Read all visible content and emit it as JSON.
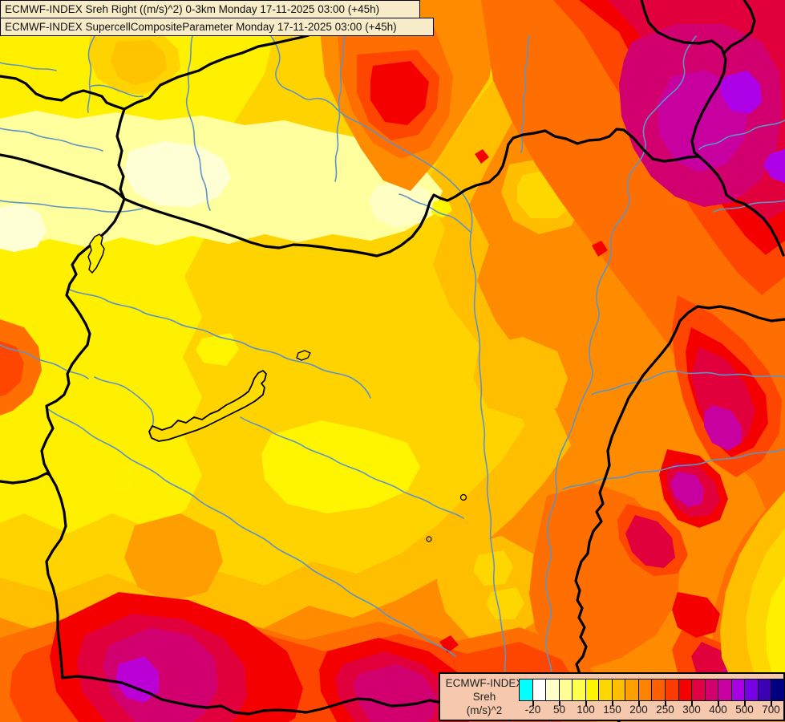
{
  "header": {
    "line1": "ECMWF-INDEX Sreh Right ((m/s)^2) 0-3km Monday 17-11-2025 03:00 (+45h)",
    "line2": "ECMWF-INDEX SupercellCompositeParameter Monday 17-11-2025 03:00 (+45h)"
  },
  "legend": {
    "title": "ECMWF-INDEX",
    "parameter": "Sreh",
    "units": "(m/s)^2",
    "tick_labels": [
      "-20",
      "50",
      "100",
      "150",
      "200",
      "250",
      "300",
      "400",
      "500",
      "700"
    ],
    "colors": [
      "#00FFFF",
      "#FFFFFF",
      "#FFFFC8",
      "#FFFF96",
      "#FFFF50",
      "#FFF500",
      "#FFD700",
      "#FFBE00",
      "#FFA000",
      "#FF8200",
      "#FF5F00",
      "#FF3C00",
      "#F80000",
      "#E10041",
      "#D2006E",
      "#C800A0",
      "#AA00E6",
      "#7800E6",
      "#3C00B4",
      "#000082"
    ]
  },
  "map": {
    "region": "weather-map-central-europe",
    "feature_names": [
      "country-borders",
      "rivers",
      "lake-balaton",
      "lake-ferto",
      "lake-velence"
    ]
  },
  "chart_data": {
    "type": "heatmap",
    "title": "ECMWF-INDEX Sreh Right ((m/s)^2) 0-3km",
    "overlay_title": "ECMWF-INDEX SupercellCompositeParameter",
    "valid_time": "Monday 17-11-2025 03:00 (+45h)",
    "units": "(m/s)^2",
    "legend_values": [
      -20,
      50,
      100,
      150,
      200,
      250,
      300,
      400,
      500,
      700
    ],
    "palette": [
      "#00FFFF",
      "#FFFFFF",
      "#FFFFC8",
      "#FFFF96",
      "#FFFF50",
      "#FFF500",
      "#FFD700",
      "#FFBE00",
      "#FFA000",
      "#FF8200",
      "#FF5F00",
      "#FF3C00",
      "#F80000",
      "#E10041",
      "#D2006E",
      "#C800A0",
      "#AA00E6",
      "#7800E6",
      "#3C00B4",
      "#000082"
    ],
    "legend_position": "bottom-right",
    "value_distribution": [
      {
        "area": "northwest (around title box, SW Slovakia / Austria)",
        "approx_range": "20-120"
      },
      {
        "area": "west-central basin around Lake Balaton",
        "approx_range": "100-180"
      },
      {
        "area": "top-center hotspot",
        "approx_range": "250-320"
      },
      {
        "area": "northeast / east (top-right magenta-purple core)",
        "approx_range": "350-550"
      },
      {
        "area": "east edge mid (crimson-magenta blobs)",
        "approx_range": "300-450"
      },
      {
        "area": "bottom-left blob (magenta-purple core)",
        "approx_range": "350-500"
      },
      {
        "area": "bottom-center blob",
        "approx_range": "300-420"
      },
      {
        "area": "southeast light wedge at right edge",
        "approx_range": "100-180"
      }
    ]
  }
}
